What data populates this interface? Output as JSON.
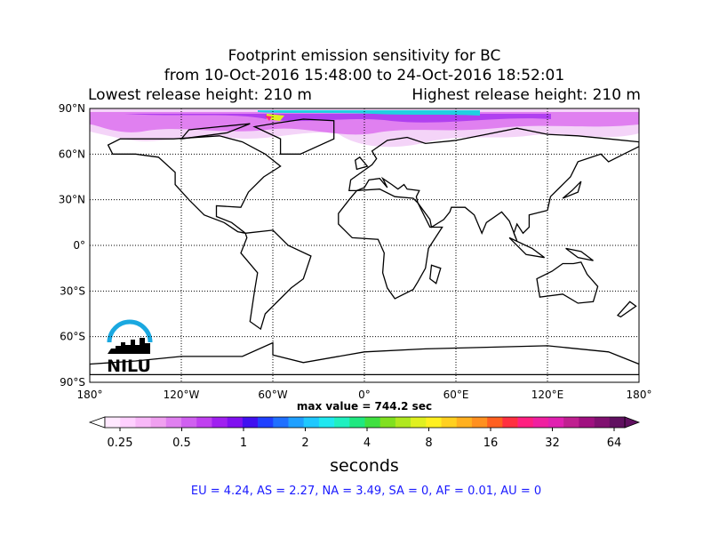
{
  "header": {
    "title": [
      "Footprint emission sensitivity for BC",
      "from 10-Oct-2016 15:48:00 to 24-Oct-2016 18:52:01",
      "Lowest release height: 210 m",
      "Highest release height: 210 m"
    ]
  },
  "map": {
    "lat_ticks": [
      {
        "value": 90,
        "label": "90°N"
      },
      {
        "value": 60,
        "label": "60°N"
      },
      {
        "value": 30,
        "label": "30°N"
      },
      {
        "value": 0,
        "label": "0°"
      },
      {
        "value": -30,
        "label": "30°S"
      },
      {
        "value": -60,
        "label": "60°S"
      },
      {
        "value": -90,
        "label": "90°S"
      }
    ],
    "lon_ticks": [
      {
        "value": -180,
        "label": "180°"
      },
      {
        "value": -120,
        "label": "120°W"
      },
      {
        "value": -60,
        "label": "60°W"
      },
      {
        "value": 0,
        "label": "0°"
      },
      {
        "value": 60,
        "label": "60°E"
      },
      {
        "value": 120,
        "label": "120°E"
      },
      {
        "value": 180,
        "label": "180°"
      }
    ],
    "max_value": "max value = 744.2 sec",
    "logo": "NILU"
  },
  "colorbar": {
    "ticks": [
      0.25,
      0.5,
      1,
      2,
      4,
      8,
      16,
      32,
      64
    ],
    "label": "seconds",
    "colors": [
      "#ffe8ff",
      "#ffd0ff",
      "#f8b8f8",
      "#f0a0f0",
      "#e080f0",
      "#d060f0",
      "#c040f0",
      "#a020f0",
      "#8010f0",
      "#4010f0",
      "#2040ff",
      "#2070ff",
      "#20a0ff",
      "#20c8ff",
      "#20e8f0",
      "#20f0c0",
      "#20e880",
      "#40e040",
      "#80e020",
      "#b0e820",
      "#e0f020",
      "#fff020",
      "#ffd020",
      "#ffb020",
      "#ff9020",
      "#ff6020",
      "#ff3040",
      "#ff2080",
      "#f020a0",
      "#e020b0",
      "#c02090",
      "#a01080",
      "#801070",
      "#601060"
    ],
    "over_color": "#601060",
    "under_color": "#ffffff"
  },
  "footer": {
    "stats": "EU = 4.24,  AS = 2.27,  NA = 3.49,  SA = 0,  AF = 0.01,  AU = 0"
  }
}
